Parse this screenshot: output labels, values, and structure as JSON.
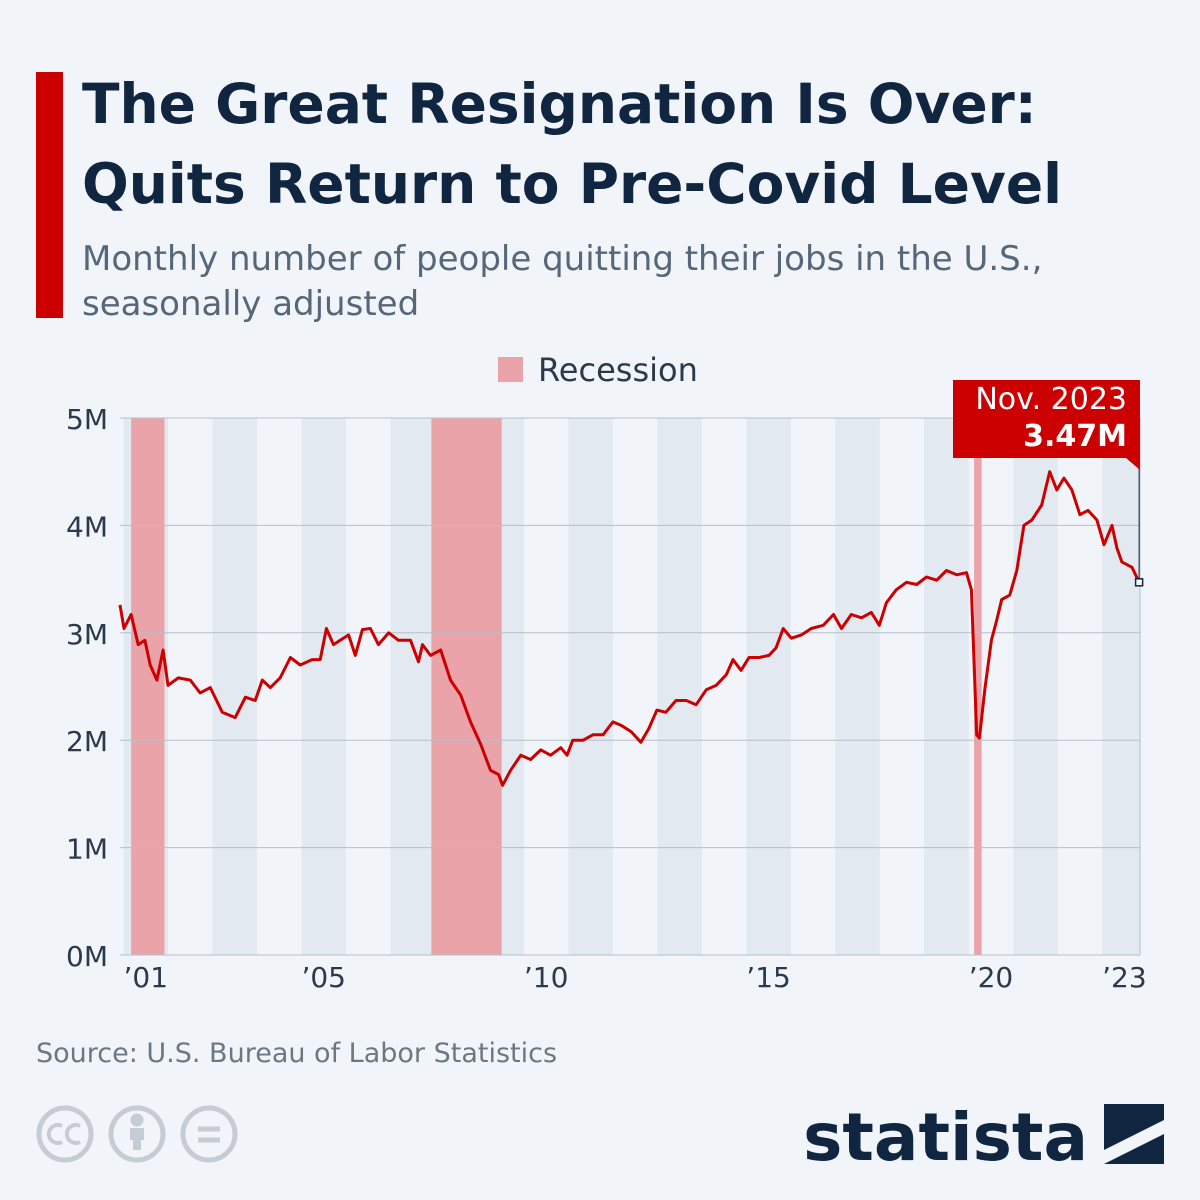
{
  "chart_data": {
    "type": "line",
    "title": "The Great Resignation Is Over:",
    "title_line2": "Quits Return to Pre-Covid Level",
    "subtitle": "Monthly number of people quitting their jobs in the U.S.,",
    "subtitle_line2": "seasonally adjusted",
    "source": "Source: U.S. Bureau of Labor Statistics",
    "brand": "statista",
    "color": "#cc0000",
    "legend": {
      "label": "Recession",
      "color": "#eaa3a8"
    },
    "recessions": [
      [
        2001.17,
        2001.92
      ],
      [
        2007.92,
        2009.5
      ],
      [
        2020.12,
        2020.29
      ]
    ],
    "xlim": [
      2000.92,
      2023.85
    ],
    "ylim": [
      0,
      5
    ],
    "xticks": [
      {
        "value": 2001.5,
        "label": "’01"
      },
      {
        "value": 2005.5,
        "label": "’05"
      },
      {
        "value": 2010.5,
        "label": "’10"
      },
      {
        "value": 2015.5,
        "label": "’15"
      },
      {
        "value": 2020.5,
        "label": "’20"
      },
      {
        "value": 2023.5,
        "label": "’23"
      }
    ],
    "yticks": [
      {
        "value": 0,
        "label": "0M"
      },
      {
        "value": 1,
        "label": "1M"
      },
      {
        "value": 2,
        "label": "2M"
      },
      {
        "value": 3,
        "label": "3M"
      },
      {
        "value": 4,
        "label": "4M"
      },
      {
        "value": 5,
        "label": "5M"
      }
    ],
    "grid": true,
    "x": [
      2000.92,
      2001.01,
      2001.17,
      2001.33,
      2001.48,
      2001.6,
      2001.75,
      2001.89,
      2002.0,
      2002.23,
      2002.5,
      2002.72,
      2002.95,
      2003.22,
      2003.51,
      2003.74,
      2003.96,
      2004.12,
      2004.3,
      2004.52,
      2004.75,
      2004.97,
      2005.24,
      2005.42,
      2005.56,
      2005.72,
      2005.87,
      2006.06,
      2006.21,
      2006.37,
      2006.55,
      2006.73,
      2006.96,
      2007.18,
      2007.45,
      2007.63,
      2007.72,
      2007.9,
      2008.13,
      2008.35,
      2008.58,
      2008.8,
      2009.03,
      2009.25,
      2009.43,
      2009.52,
      2009.7,
      2009.93,
      2010.15,
      2010.38,
      2010.6,
      2010.83,
      2010.97,
      2011.1,
      2011.33,
      2011.55,
      2011.78,
      2012.0,
      2012.18,
      2012.41,
      2012.63,
      2012.81,
      2012.99,
      2013.19,
      2013.42,
      2013.65,
      2013.87,
      2014.1,
      2014.32,
      2014.55,
      2014.7,
      2014.88,
      2015.06,
      2015.29,
      2015.51,
      2015.67,
      2015.83,
      2016.01,
      2016.24,
      2016.46,
      2016.73,
      2016.96,
      2017.14,
      2017.36,
      2017.59,
      2017.81,
      2017.99,
      2018.15,
      2018.37,
      2018.6,
      2018.83,
      2019.05,
      2019.28,
      2019.5,
      2019.73,
      2019.95,
      2020.06,
      2020.18,
      2020.24,
      2020.36,
      2020.51,
      2020.63,
      2020.74,
      2020.92,
      2021.08,
      2021.24,
      2021.42,
      2021.64,
      2021.82,
      2021.98,
      2022.14,
      2022.32,
      2022.5,
      2022.68,
      2022.88,
      2023.04,
      2023.22,
      2023.33,
      2023.44,
      2023.67,
      2023.83
    ],
    "values": [
      3.26,
      3.04,
      3.17,
      2.89,
      2.93,
      2.7,
      2.56,
      2.84,
      2.51,
      2.58,
      2.56,
      2.44,
      2.49,
      2.26,
      2.21,
      2.4,
      2.37,
      2.56,
      2.49,
      2.58,
      2.77,
      2.7,
      2.75,
      2.75,
      3.04,
      2.89,
      2.93,
      2.98,
      2.79,
      3.03,
      3.04,
      2.89,
      3.0,
      2.93,
      2.93,
      2.73,
      2.89,
      2.79,
      2.84,
      2.56,
      2.42,
      2.17,
      1.96,
      1.72,
      1.68,
      1.58,
      1.72,
      1.86,
      1.82,
      1.91,
      1.86,
      1.93,
      1.86,
      2.0,
      2.0,
      2.05,
      2.05,
      2.17,
      2.14,
      2.08,
      1.98,
      2.11,
      2.28,
      2.26,
      2.37,
      2.37,
      2.33,
      2.47,
      2.51,
      2.61,
      2.75,
      2.65,
      2.77,
      2.77,
      2.79,
      2.86,
      3.04,
      2.95,
      2.98,
      3.04,
      3.07,
      3.17,
      3.04,
      3.17,
      3.14,
      3.19,
      3.07,
      3.28,
      3.4,
      3.47,
      3.45,
      3.52,
      3.49,
      3.58,
      3.54,
      3.56,
      3.4,
      2.05,
      2.02,
      2.47,
      2.93,
      3.12,
      3.31,
      3.35,
      3.58,
      4.0,
      4.05,
      4.19,
      4.5,
      4.33,
      4.44,
      4.33,
      4.1,
      4.14,
      4.05,
      3.82,
      4.0,
      3.79,
      3.66,
      3.61,
      3.47
    ],
    "annotation": {
      "x": 2023.83,
      "value": 3.47,
      "date": "Nov. 2023",
      "label": "3.47M"
    }
  }
}
